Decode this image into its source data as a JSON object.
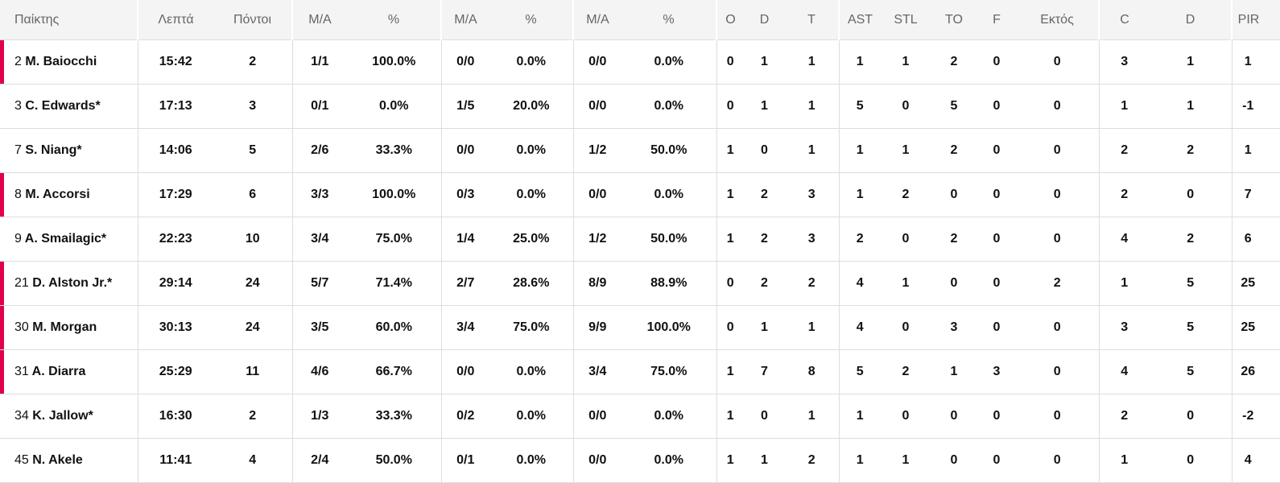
{
  "colors": {
    "accent": "#e0004d",
    "header_bg": "#f4f4f4"
  },
  "headers": [
    "Παίκτης",
    "Λεπτά",
    "Πόντοι",
    "M/A",
    "%",
    "M/A",
    "%",
    "M/A",
    "%",
    "O",
    "D",
    "T",
    "AST",
    "STL",
    "TO",
    "F",
    "Εκτός",
    "C",
    "D",
    "PIR"
  ],
  "rows": [
    {
      "number": "2",
      "name": "M. Baiocchi",
      "marked": true,
      "stats": [
        "15:42",
        "2",
        "1/1",
        "100.0%",
        "0/0",
        "0.0%",
        "0/0",
        "0.0%",
        "0",
        "1",
        "1",
        "1",
        "1",
        "2",
        "0",
        "0",
        "3",
        "1",
        "1"
      ]
    },
    {
      "number": "3",
      "name": "C. Edwards*",
      "marked": false,
      "stats": [
        "17:13",
        "3",
        "0/1",
        "0.0%",
        "1/5",
        "20.0%",
        "0/0",
        "0.0%",
        "0",
        "1",
        "1",
        "5",
        "0",
        "5",
        "0",
        "0",
        "1",
        "1",
        "-1"
      ]
    },
    {
      "number": "7",
      "name": "S. Niang*",
      "marked": false,
      "stats": [
        "14:06",
        "5",
        "2/6",
        "33.3%",
        "0/0",
        "0.0%",
        "1/2",
        "50.0%",
        "1",
        "0",
        "1",
        "1",
        "1",
        "2",
        "0",
        "0",
        "2",
        "2",
        "1"
      ]
    },
    {
      "number": "8",
      "name": "M. Accorsi",
      "marked": true,
      "stats": [
        "17:29",
        "6",
        "3/3",
        "100.0%",
        "0/3",
        "0.0%",
        "0/0",
        "0.0%",
        "1",
        "2",
        "3",
        "1",
        "2",
        "0",
        "0",
        "0",
        "2",
        "0",
        "7"
      ]
    },
    {
      "number": "9",
      "name": "A. Smailagic*",
      "marked": false,
      "stats": [
        "22:23",
        "10",
        "3/4",
        "75.0%",
        "1/4",
        "25.0%",
        "1/2",
        "50.0%",
        "1",
        "2",
        "3",
        "2",
        "0",
        "2",
        "0",
        "0",
        "4",
        "2",
        "6"
      ]
    },
    {
      "number": "21",
      "name": "D. Alston Jr.*",
      "marked": true,
      "stats": [
        "29:14",
        "24",
        "5/7",
        "71.4%",
        "2/7",
        "28.6%",
        "8/9",
        "88.9%",
        "0",
        "2",
        "2",
        "4",
        "1",
        "0",
        "0",
        "2",
        "1",
        "5",
        "25"
      ]
    },
    {
      "number": "30",
      "name": "M. Morgan",
      "marked": true,
      "stats": [
        "30:13",
        "24",
        "3/5",
        "60.0%",
        "3/4",
        "75.0%",
        "9/9",
        "100.0%",
        "0",
        "1",
        "1",
        "4",
        "0",
        "3",
        "0",
        "0",
        "3",
        "5",
        "25"
      ]
    },
    {
      "number": "31",
      "name": "A. Diarra",
      "marked": true,
      "stats": [
        "25:29",
        "11",
        "4/6",
        "66.7%",
        "0/0",
        "0.0%",
        "3/4",
        "75.0%",
        "1",
        "7",
        "8",
        "5",
        "2",
        "1",
        "3",
        "0",
        "4",
        "5",
        "26"
      ]
    },
    {
      "number": "34",
      "name": "K. Jallow*",
      "marked": false,
      "stats": [
        "16:30",
        "2",
        "1/3",
        "33.3%",
        "0/2",
        "0.0%",
        "0/0",
        "0.0%",
        "1",
        "0",
        "1",
        "1",
        "0",
        "0",
        "0",
        "0",
        "2",
        "0",
        "-2"
      ]
    },
    {
      "number": "45",
      "name": "N. Akele",
      "marked": false,
      "stats": [
        "11:41",
        "4",
        "2/4",
        "50.0%",
        "0/1",
        "0.0%",
        "0/0",
        "0.0%",
        "1",
        "1",
        "2",
        "1",
        "1",
        "0",
        "0",
        "0",
        "1",
        "0",
        "4"
      ]
    }
  ]
}
